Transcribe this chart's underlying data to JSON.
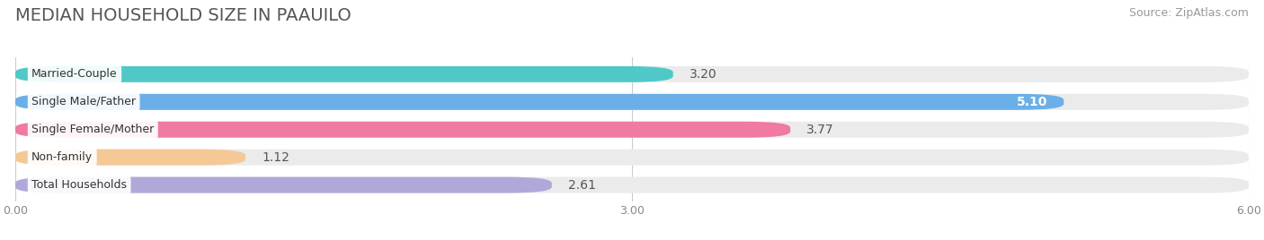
{
  "title": "MEDIAN HOUSEHOLD SIZE IN PAAUILO",
  "source": "Source: ZipAtlas.com",
  "categories": [
    "Married-Couple",
    "Single Male/Father",
    "Single Female/Mother",
    "Non-family",
    "Total Households"
  ],
  "values": [
    3.2,
    5.1,
    3.77,
    1.12,
    2.61
  ],
  "bar_colors": [
    "#50c8c8",
    "#6aafe8",
    "#f07aa0",
    "#f5c897",
    "#b0a8d8"
  ],
  "bar_bg_colors": [
    "#ebebeb",
    "#ebebeb",
    "#ebebeb",
    "#ebebeb",
    "#ebebeb"
  ],
  "xlim": [
    0,
    6.0
  ],
  "xticks": [
    0.0,
    3.0,
    6.0
  ],
  "xtick_labels": [
    "0.00",
    "3.00",
    "6.00"
  ],
  "title_fontsize": 14,
  "source_fontsize": 9,
  "bar_label_fontsize": 10,
  "category_fontsize": 9,
  "background_color": "#ffffff",
  "value_white_threshold": 4.5
}
